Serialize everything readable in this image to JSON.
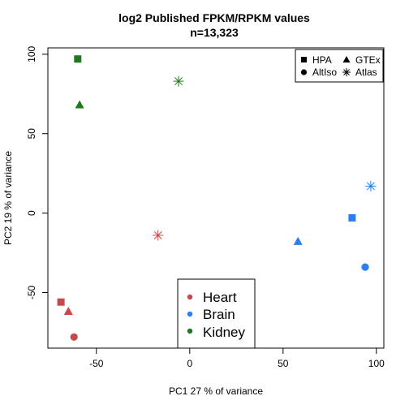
{
  "chart_data": {
    "type": "scatter",
    "title": "log2  Published FPKM/RPKM values",
    "subtitle": "n=13,323",
    "xlabel": "PC1 27 % of variance",
    "ylabel": "PC2 19 % of variance",
    "xlim": [
      -76,
      104
    ],
    "ylim": [
      -85,
      104
    ],
    "xticks": [
      -50,
      0,
      50,
      100
    ],
    "yticks": [
      -50,
      0,
      50,
      100
    ],
    "colors": {
      "Heart": "#c9484b",
      "Brain": "#2a7ef0",
      "Kidney": "#1f7a1f"
    },
    "shape_legend": {
      "placement": "top-right",
      "entries": [
        {
          "label": "HPA",
          "shape": "square"
        },
        {
          "label": "GTEx",
          "shape": "triangle"
        },
        {
          "label": "AltIso",
          "shape": "circle"
        },
        {
          "label": "Atlas",
          "shape": "asterisk"
        }
      ]
    },
    "color_legend": {
      "placement": "bottom-center",
      "entries": [
        "Heart",
        "Brain",
        "Kidney"
      ]
    },
    "points": [
      {
        "tissue": "Kidney",
        "source": "HPA",
        "x": -60,
        "y": 97
      },
      {
        "tissue": "Kidney",
        "source": "GTEx",
        "x": -59,
        "y": 68
      },
      {
        "tissue": "Kidney",
        "source": "Atlas",
        "x": -6,
        "y": 83
      },
      {
        "tissue": "Brain",
        "source": "Atlas",
        "x": 97,
        "y": 17
      },
      {
        "tissue": "Brain",
        "source": "HPA",
        "x": 87,
        "y": -3
      },
      {
        "tissue": "Brain",
        "source": "GTEx",
        "x": 58,
        "y": -18
      },
      {
        "tissue": "Brain",
        "source": "AltIso",
        "x": 94,
        "y": -34
      },
      {
        "tissue": "Heart",
        "source": "Atlas",
        "x": -17,
        "y": -14
      },
      {
        "tissue": "Heart",
        "source": "HPA",
        "x": -69,
        "y": -56
      },
      {
        "tissue": "Heart",
        "source": "GTEx",
        "x": -65,
        "y": -62
      },
      {
        "tissue": "Heart",
        "source": "AltIso",
        "x": -62,
        "y": -78
      }
    ]
  }
}
